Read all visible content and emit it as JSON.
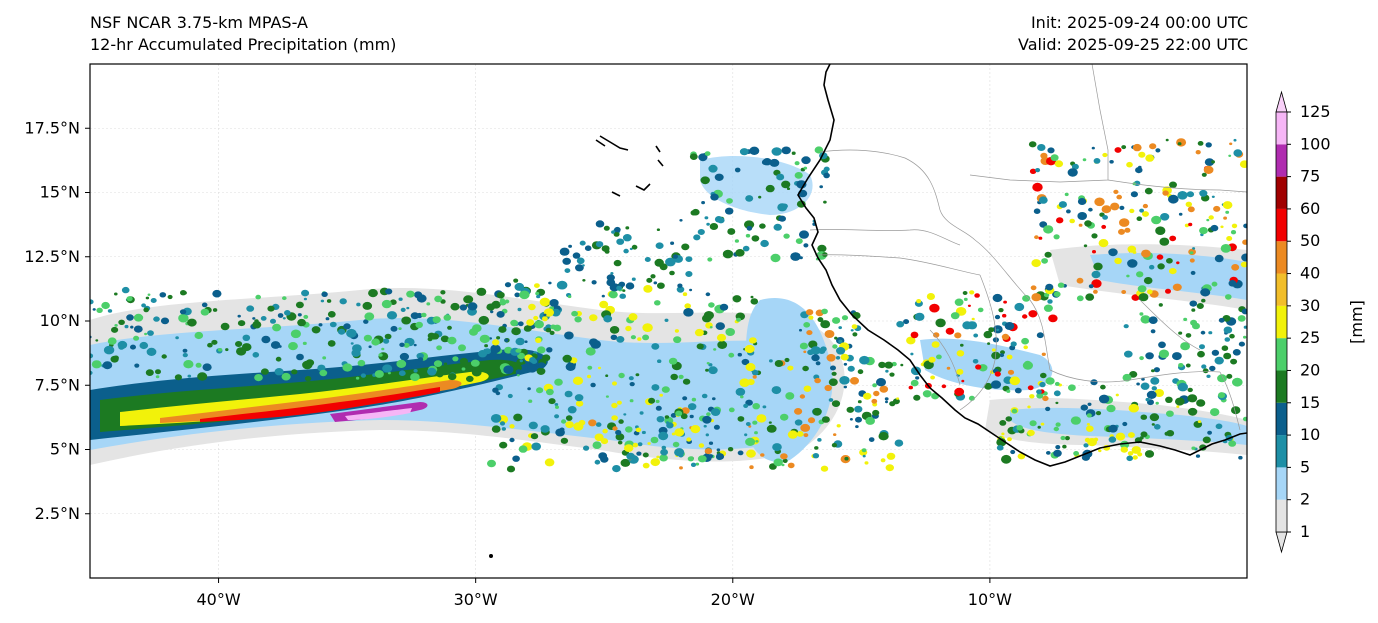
{
  "header": {
    "model_title": "NSF NCAR 3.75-km MPAS-A",
    "field_title": "12-hr Accumulated Precipitation (mm)",
    "init_text": "Init: 2025-09-24 00:00 UTC",
    "valid_text": "Valid: 2025-09-25 22:00 UTC"
  },
  "map": {
    "lat_ticks": [
      {
        "value": 17.5,
        "label": "17.5°N"
      },
      {
        "value": 15,
        "label": "15°N"
      },
      {
        "value": 12.5,
        "label": "12.5°N"
      },
      {
        "value": 10,
        "label": "10°N"
      },
      {
        "value": 7.5,
        "label": "7.5°N"
      },
      {
        "value": 5,
        "label": "5°N"
      },
      {
        "value": 2.5,
        "label": "2.5°N"
      }
    ],
    "lon_ticks": [
      {
        "value": -40,
        "label": "40°W"
      },
      {
        "value": -30,
        "label": "30°W"
      },
      {
        "value": -20,
        "label": "20°W"
      },
      {
        "value": -10,
        "label": "10°W"
      }
    ],
    "extent": {
      "lon_min": -45,
      "lon_max": 0,
      "lat_min": 0,
      "lat_max": 20
    },
    "gridlines": true
  },
  "colorbar": {
    "unit_label": "[mm]",
    "levels": [
      {
        "label": "1",
        "color": "#e4e4e4"
      },
      {
        "label": "2",
        "color": "#a6d6f7"
      },
      {
        "label": "5",
        "color": "#1e8fa6"
      },
      {
        "label": "10",
        "color": "#0b5f8c"
      },
      {
        "label": "15",
        "color": "#1c7a22"
      },
      {
        "label": "20",
        "color": "#4ccf6a"
      },
      {
        "label": "25",
        "color": "#f2f20a"
      },
      {
        "label": "30",
        "color": "#f2be2a"
      },
      {
        "label": "40",
        "color": "#ec8a22"
      },
      {
        "label": "50",
        "color": "#f20000"
      },
      {
        "label": "60",
        "color": "#a00000"
      },
      {
        "label": "75",
        "color": "#b02cb0"
      },
      {
        "label": "100",
        "color": "#f6b6f6"
      },
      {
        "label": "125",
        "color": ""
      }
    ]
  }
}
